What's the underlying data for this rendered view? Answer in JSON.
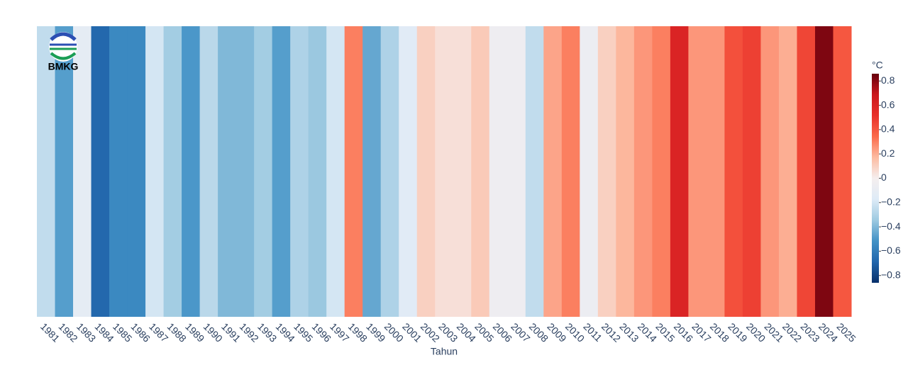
{
  "chart_data": {
    "type": "heatmap",
    "logo_text": "BMKG",
    "x_label": "Tahun",
    "colorbar_title": "°C",
    "categories": [
      "1981",
      "1982",
      "1983",
      "1984",
      "1985",
      "1986",
      "1987",
      "1988",
      "1989",
      "1990",
      "1991",
      "1992",
      "1993",
      "1994",
      "1995",
      "1996",
      "1997",
      "1998",
      "1999",
      "2000",
      "2001",
      "2002",
      "2003",
      "2004",
      "2005",
      "2006",
      "2007",
      "2008",
      "2009",
      "2010",
      "2011",
      "2012",
      "2013",
      "2014",
      "2015",
      "2016",
      "2017",
      "2018",
      "2019",
      "2020",
      "2021",
      "2022",
      "2023",
      "2024",
      "2025"
    ],
    "values": [
      -0.25,
      -0.48,
      -0.12,
      -0.68,
      -0.55,
      -0.55,
      -0.2,
      -0.33,
      -0.5,
      -0.27,
      -0.4,
      -0.4,
      -0.33,
      -0.48,
      -0.3,
      -0.35,
      -0.2,
      0.3,
      -0.45,
      -0.3,
      -0.15,
      0.1,
      0.05,
      0.05,
      0.12,
      -0.05,
      -0.05,
      -0.25,
      0.22,
      0.3,
      -0.07,
      0.1,
      0.18,
      0.25,
      0.3,
      0.6,
      0.25,
      0.25,
      0.42,
      0.47,
      0.25,
      0.2,
      0.45,
      0.82,
      0.4
    ],
    "zlim": [
      -0.86,
      0.86
    ],
    "colorscale": [
      "#08306b",
      "#2166ac",
      "#4292c6",
      "#9ecae1",
      "#deebf7",
      "#f5eeee",
      "#fcbba1",
      "#fb6a4a",
      "#e8302a",
      "#cb181d",
      "#67000d"
    ],
    "zticks": [
      {
        "value": -0.8,
        "label": "−0.8"
      },
      {
        "value": -0.6,
        "label": "−0.6"
      },
      {
        "value": -0.4,
        "label": "−0.4"
      },
      {
        "value": -0.2,
        "label": "−0.2"
      },
      0,
      0.2,
      0.4,
      0.6,
      0.8
    ]
  }
}
